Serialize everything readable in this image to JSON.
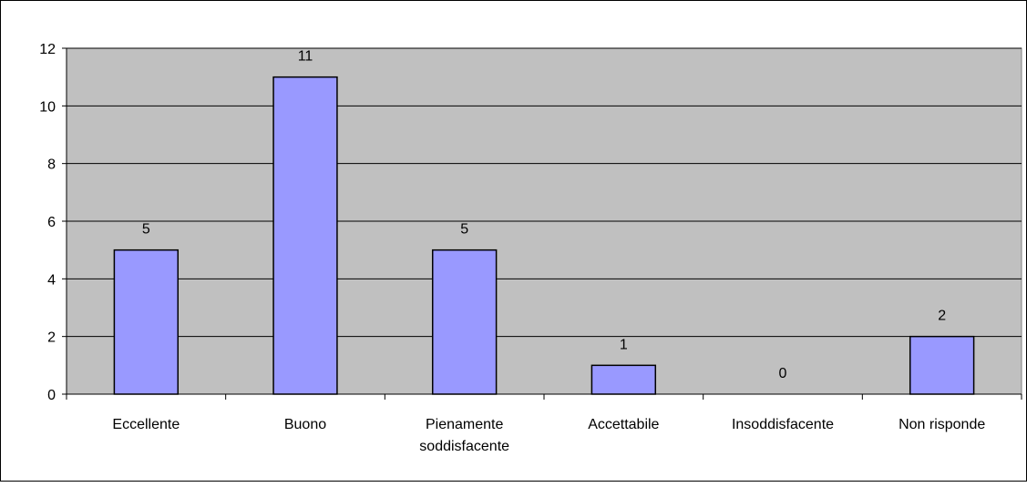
{
  "chart_data": {
    "type": "bar",
    "title": "",
    "xlabel": "",
    "ylabel": "",
    "categories": [
      [
        "Eccellente"
      ],
      [
        "Buono"
      ],
      [
        "Pienamente",
        "soddisfacente"
      ],
      [
        "Accettabile"
      ],
      [
        "Insoddisfacente"
      ],
      [
        "Non risponde"
      ]
    ],
    "values": [
      5,
      11,
      5,
      1,
      0,
      2
    ],
    "data_labels": [
      "5",
      "11",
      "5",
      "1",
      "0",
      "2"
    ],
    "ylim": [
      0,
      12
    ],
    "yticks": [
      0,
      2,
      4,
      6,
      8,
      10,
      12
    ],
    "ytick_labels": [
      "0",
      "2",
      "4",
      "6",
      "8",
      "10",
      "12"
    ],
    "grid": true,
    "legend": false,
    "colors": {
      "plot_background": "#c0c0c0",
      "bar_fill": "#9999ff",
      "bar_stroke": "#000000",
      "gridline": "#000000"
    }
  }
}
